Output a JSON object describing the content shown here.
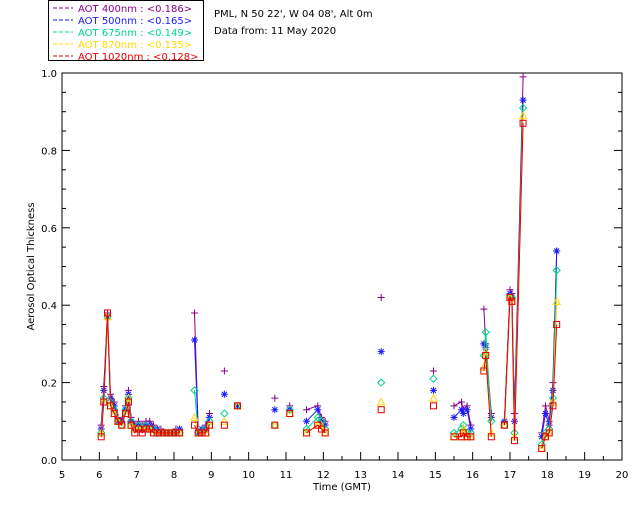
{
  "chart_data": {
    "type": "scatter",
    "xlabel": "Time (GMT)",
    "ylabel": "Aerosol Optical Thickness",
    "xlim": [
      5,
      20
    ],
    "ylim": [
      0,
      1.0
    ],
    "x_ticks": [
      "5",
      "6",
      "7",
      "8",
      "9",
      "10",
      "11",
      "12",
      "13",
      "14",
      "15",
      "16",
      "17",
      "18",
      "19",
      "20"
    ],
    "y_ticks": [
      "0.0",
      "0.2",
      "0.4",
      "0.6",
      "0.8",
      "1.0"
    ],
    "grid": false,
    "legend_placement": "top-left, above plot",
    "info_lines": [
      "PML, N 50 22', W 04 08', Alt 0m",
      "Data from: 11 May 2020"
    ],
    "x": [
      6.05,
      6.12,
      6.22,
      6.3,
      6.4,
      6.5,
      6.6,
      6.7,
      6.78,
      6.85,
      6.95,
      7.05,
      7.15,
      7.25,
      7.35,
      7.45,
      7.55,
      7.65,
      7.75,
      7.85,
      7.95,
      8.05,
      8.15,
      8.55,
      8.65,
      8.75,
      8.85,
      8.95,
      9.35,
      9.7,
      10.7,
      11.1,
      11.55,
      11.85,
      11.95,
      12.05,
      13.55,
      14.95,
      15.5,
      15.7,
      15.75,
      15.85,
      15.95,
      16.3,
      16.35,
      16.5,
      16.85,
      17.0,
      17.05,
      17.12,
      17.35,
      17.85,
      17.95,
      18.05,
      18.15,
      18.25
    ],
    "series": [
      {
        "name": "AOT  400nm",
        "legend_label": "AOT  400nm : <0.186>",
        "color": "#8b008b",
        "marker": "plus",
        "values": [
          0.09,
          0.19,
          0.38,
          0.17,
          0.15,
          0.11,
          0.1,
          0.14,
          0.18,
          0.11,
          0.09,
          0.1,
          0.09,
          0.1,
          0.1,
          0.09,
          0.08,
          0.08,
          0.07,
          0.07,
          0.07,
          0.08,
          0.08,
          0.38,
          0.07,
          0.08,
          0.09,
          0.12,
          0.23,
          0.14,
          0.16,
          0.14,
          0.13,
          0.14,
          0.11,
          0.1,
          0.42,
          0.23,
          0.14,
          0.15,
          0.13,
          0.14,
          0.09,
          0.39,
          0.3,
          0.12,
          0.1,
          0.44,
          0.43,
          0.12,
          0.99,
          0.07,
          0.14,
          0.1,
          0.2,
          0.54
        ]
      },
      {
        "name": "AOT  500nm",
        "legend_label": "AOT  500nm : <0.165>",
        "color": "#1a1aff",
        "marker": "asterisk",
        "values": [
          0.08,
          0.18,
          0.37,
          0.16,
          0.14,
          0.1,
          0.1,
          0.13,
          0.17,
          0.1,
          0.09,
          0.09,
          0.08,
          0.09,
          0.09,
          0.08,
          0.08,
          0.07,
          0.07,
          0.07,
          0.07,
          0.07,
          0.08,
          0.31,
          0.07,
          0.08,
          0.08,
          0.11,
          0.17,
          0.14,
          0.13,
          0.13,
          0.1,
          0.13,
          0.1,
          0.09,
          0.28,
          0.18,
          0.11,
          0.13,
          0.12,
          0.13,
          0.08,
          0.3,
          0.29,
          0.11,
          0.1,
          0.43,
          0.42,
          0.1,
          0.93,
          0.06,
          0.12,
          0.09,
          0.18,
          0.54
        ]
      },
      {
        "name": "AOT  675nm",
        "legend_label": "AOT  675nm : <0.149>",
        "color": "#00d488",
        "marker": "diamond",
        "values": [
          0.07,
          0.16,
          0.37,
          0.15,
          0.13,
          0.1,
          0.09,
          0.13,
          0.16,
          0.1,
          0.08,
          0.09,
          0.08,
          0.09,
          0.08,
          0.08,
          0.07,
          0.07,
          0.07,
          0.07,
          0.07,
          0.07,
          0.07,
          0.18,
          0.07,
          0.07,
          0.08,
          0.1,
          0.12,
          0.14,
          0.09,
          0.13,
          0.08,
          0.11,
          0.1,
          0.08,
          0.2,
          0.21,
          0.07,
          0.08,
          0.09,
          0.07,
          0.07,
          0.27,
          0.33,
          0.1,
          0.09,
          0.42,
          0.42,
          0.07,
          0.91,
          0.04,
          0.07,
          0.08,
          0.16,
          0.49
        ]
      },
      {
        "name": "AOT  870nm",
        "legend_label": "AOT  870nm : <0.135>",
        "color": "#ffd700",
        "marker": "triangle",
        "values": [
          0.07,
          0.15,
          0.37,
          0.14,
          0.12,
          0.1,
          0.09,
          0.12,
          0.16,
          0.09,
          0.08,
          0.08,
          0.08,
          0.08,
          0.08,
          0.07,
          0.07,
          0.07,
          0.07,
          0.07,
          0.07,
          0.07,
          0.07,
          0.11,
          0.07,
          0.07,
          0.07,
          0.09,
          0.1,
          0.14,
          0.09,
          0.12,
          0.07,
          0.09,
          0.09,
          0.07,
          0.15,
          0.16,
          0.06,
          0.06,
          0.08,
          0.06,
          0.06,
          0.24,
          0.28,
          0.07,
          0.09,
          0.42,
          0.41,
          0.06,
          0.89,
          0.03,
          0.06,
          0.07,
          0.15,
          0.41
        ]
      },
      {
        "name": "AOT 1020nm",
        "legend_label": "AOT 1020nm : <0.128>",
        "color": "#e60000",
        "marker": "square",
        "values": [
          0.06,
          0.15,
          0.38,
          0.14,
          0.12,
          0.1,
          0.09,
          0.12,
          0.15,
          0.09,
          0.07,
          0.08,
          0.07,
          0.08,
          0.08,
          0.07,
          0.07,
          0.07,
          0.07,
          0.07,
          0.07,
          0.07,
          0.07,
          0.09,
          0.07,
          0.07,
          0.07,
          0.09,
          0.09,
          0.14,
          0.09,
          0.12,
          0.07,
          0.09,
          0.08,
          0.07,
          0.13,
          0.14,
          0.06,
          0.06,
          0.07,
          0.06,
          0.06,
          0.23,
          0.27,
          0.06,
          0.09,
          0.42,
          0.41,
          0.05,
          0.87,
          0.03,
          0.06,
          0.07,
          0.14,
          0.35
        ]
      }
    ]
  }
}
